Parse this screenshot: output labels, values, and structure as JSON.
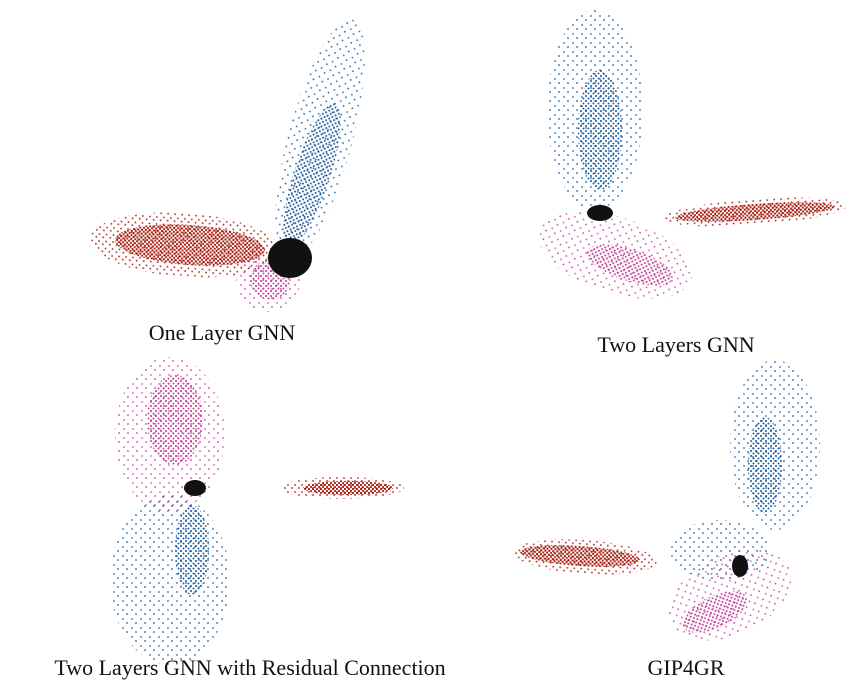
{
  "panels": [
    {
      "caption": "One Layer GNN"
    },
    {
      "caption": "Two Layers GNN"
    },
    {
      "caption": "Two Layers GNN with Residual Connection"
    },
    {
      "caption": "GIP4GR"
    }
  ]
}
